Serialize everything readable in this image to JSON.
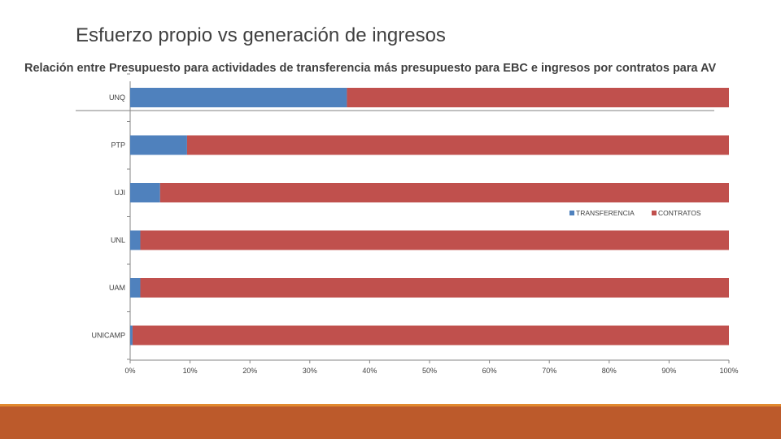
{
  "slide": {
    "title": "Esfuerzo propio vs generación de ingresos"
  },
  "chart_data": {
    "type": "bar",
    "orientation": "horizontal",
    "stacked": "percent",
    "title": "Relación entre Presupuesto  para actividades  de transferencia   más presupuesto  para   EBC   e ingresos  por contratos  para AV",
    "categories": [
      "UNQ",
      "PTP",
      "UJI",
      "UNL",
      "UAM",
      "UNICAMP"
    ],
    "series": [
      {
        "name": "TRANSFERENCIA",
        "color": "#4f81bd",
        "values": [
          36.2,
          9.5,
          5.0,
          1.7,
          1.7,
          0.4
        ]
      },
      {
        "name": "CONTRATOS",
        "color": "#c0504d",
        "values": [
          63.8,
          90.5,
          95.0,
          98.3,
          98.3,
          99.6
        ]
      }
    ],
    "x_ticks": [
      "0%",
      "10%",
      "20%",
      "30%",
      "40%",
      "50%",
      "60%",
      "70%",
      "80%",
      "90%",
      "100%"
    ],
    "xlim": [
      0,
      100
    ],
    "legend": "middle-right"
  },
  "colors": {
    "footer": "#bc5a2b",
    "footer_line": "#e1892f"
  }
}
